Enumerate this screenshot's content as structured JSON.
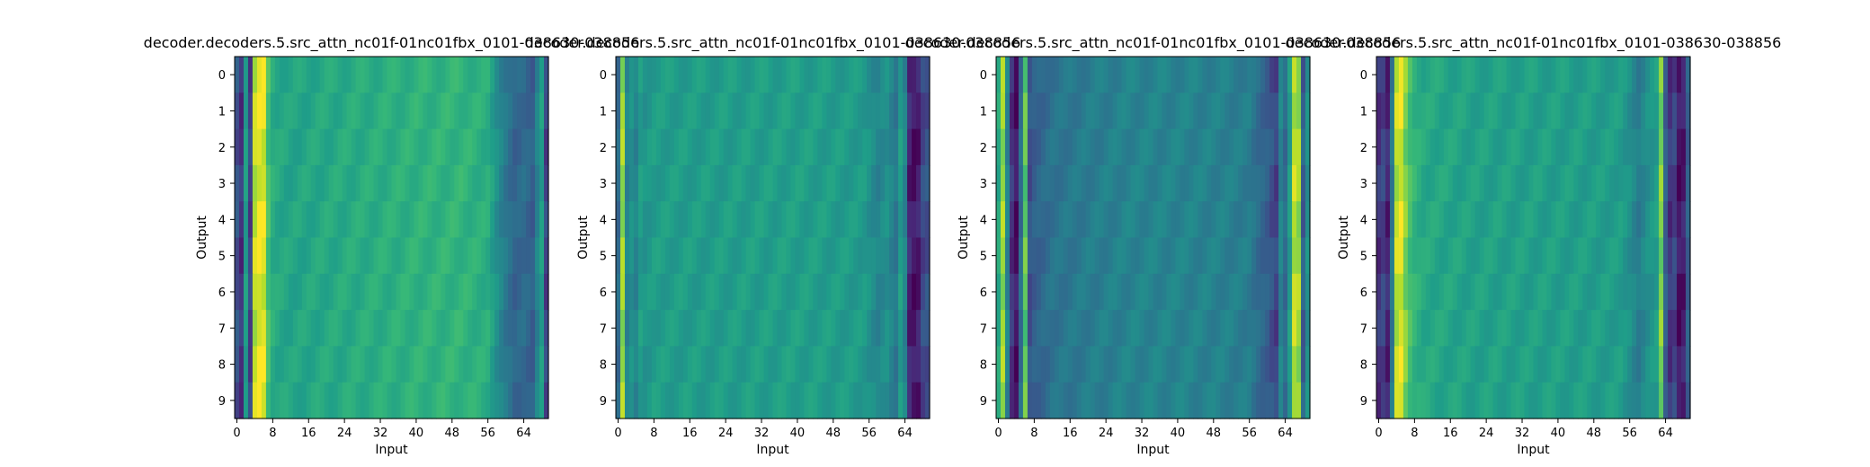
{
  "chart_data": [
    {
      "type": "heatmap",
      "title": "decoder.decoders.5.src_attn_nc01f-01nc01fbx_0101-038630-038856",
      "xlabel": "Input",
      "ylabel": "Output",
      "xticks": [
        0,
        8,
        16,
        24,
        32,
        40,
        48,
        56,
        64
      ],
      "yticks": [
        0,
        1,
        2,
        3,
        4,
        5,
        6,
        7,
        8,
        9
      ],
      "n_inputs": 70,
      "n_outputs": 10,
      "colormap": "viridis",
      "grid": false,
      "column_profile": [
        [
          0,
          0.25
        ],
        [
          1,
          0.15
        ],
        [
          2,
          0.55
        ],
        [
          3,
          0.2
        ],
        [
          4,
          0.9
        ],
        [
          5,
          0.97
        ],
        [
          6,
          0.95
        ],
        [
          7,
          0.7
        ],
        [
          8,
          0.62
        ],
        [
          9,
          0.6
        ],
        [
          12,
          0.58
        ],
        [
          20,
          0.6
        ],
        [
          30,
          0.62
        ],
        [
          40,
          0.64
        ],
        [
          50,
          0.65
        ],
        [
          56,
          0.62
        ],
        [
          58,
          0.5
        ],
        [
          60,
          0.4
        ],
        [
          62,
          0.32
        ],
        [
          64,
          0.35
        ],
        [
          66,
          0.3
        ],
        [
          67,
          0.45
        ],
        [
          68,
          0.55
        ],
        [
          69,
          0.2
        ]
      ]
    },
    {
      "type": "heatmap",
      "title": "decoder.decoders.5.src_attn_nc01f-01nc01fbx_0101-038630-038856",
      "xlabel": "Input",
      "ylabel": "Output",
      "xticks": [
        0,
        8,
        16,
        24,
        32,
        40,
        48,
        56,
        64
      ],
      "yticks": [
        0,
        1,
        2,
        3,
        4,
        5,
        6,
        7,
        8,
        9
      ],
      "n_inputs": 70,
      "n_outputs": 10,
      "colormap": "viridis",
      "grid": false,
      "column_profile": [
        [
          0,
          0.35
        ],
        [
          1,
          0.85
        ],
        [
          2,
          0.45
        ],
        [
          3,
          0.5
        ],
        [
          4,
          0.45
        ],
        [
          5,
          0.55
        ],
        [
          6,
          0.52
        ],
        [
          8,
          0.55
        ],
        [
          20,
          0.55
        ],
        [
          40,
          0.56
        ],
        [
          55,
          0.54
        ],
        [
          58,
          0.45
        ],
        [
          60,
          0.5
        ],
        [
          62,
          0.4
        ],
        [
          63,
          0.55
        ],
        [
          64,
          0.45
        ],
        [
          65,
          0.1
        ],
        [
          66,
          0.05
        ],
        [
          67,
          0.08
        ],
        [
          68,
          0.22
        ],
        [
          69,
          0.25
        ]
      ]
    },
    {
      "type": "heatmap",
      "title": "decoder.decoders.5.src_attn_nc01f-01nc01fbx_0101-038630-038856",
      "xlabel": "Input",
      "ylabel": "Output",
      "xticks": [
        0,
        8,
        16,
        24,
        32,
        40,
        48,
        56,
        64
      ],
      "yticks": [
        0,
        1,
        2,
        3,
        4,
        5,
        6,
        7,
        8,
        9
      ],
      "n_inputs": 70,
      "n_outputs": 10,
      "colormap": "viridis",
      "grid": false,
      "column_profile": [
        [
          0,
          0.6
        ],
        [
          1,
          0.85
        ],
        [
          2,
          0.45
        ],
        [
          3,
          0.15
        ],
        [
          4,
          0.05
        ],
        [
          5,
          0.35
        ],
        [
          6,
          0.75
        ],
        [
          7,
          0.25
        ],
        [
          8,
          0.3
        ],
        [
          12,
          0.38
        ],
        [
          20,
          0.42
        ],
        [
          30,
          0.45
        ],
        [
          40,
          0.45
        ],
        [
          50,
          0.44
        ],
        [
          56,
          0.42
        ],
        [
          58,
          0.35
        ],
        [
          60,
          0.3
        ],
        [
          62,
          0.2
        ],
        [
          63,
          0.45
        ],
        [
          64,
          0.35
        ],
        [
          65,
          0.55
        ],
        [
          66,
          0.9
        ],
        [
          67,
          0.85
        ],
        [
          68,
          0.3
        ],
        [
          69,
          0.5
        ]
      ]
    },
    {
      "type": "heatmap",
      "title": "decoder.decoders.5.src_attn_nc01f-01nc01fbx_0101-038630-038856",
      "xlabel": "Input",
      "ylabel": "Output",
      "xticks": [
        0,
        8,
        16,
        24,
        32,
        40,
        48,
        56,
        64
      ],
      "yticks": [
        0,
        1,
        2,
        3,
        4,
        5,
        6,
        7,
        8,
        9
      ],
      "n_inputs": 70,
      "n_outputs": 10,
      "colormap": "viridis",
      "grid": false,
      "column_profile": [
        [
          0,
          0.15
        ],
        [
          1,
          0.2
        ],
        [
          2,
          0.1
        ],
        [
          3,
          0.4
        ],
        [
          4,
          0.9
        ],
        [
          5,
          0.95
        ],
        [
          6,
          0.8
        ],
        [
          7,
          0.7
        ],
        [
          8,
          0.65
        ],
        [
          10,
          0.6
        ],
        [
          20,
          0.57
        ],
        [
          40,
          0.56
        ],
        [
          54,
          0.55
        ],
        [
          56,
          0.5
        ],
        [
          58,
          0.42
        ],
        [
          60,
          0.5
        ],
        [
          62,
          0.55
        ],
        [
          63,
          0.8
        ],
        [
          64,
          0.3
        ],
        [
          65,
          0.15
        ],
        [
          66,
          0.2
        ],
        [
          67,
          0.05
        ],
        [
          68,
          0.08
        ],
        [
          69,
          0.3
        ]
      ]
    }
  ]
}
